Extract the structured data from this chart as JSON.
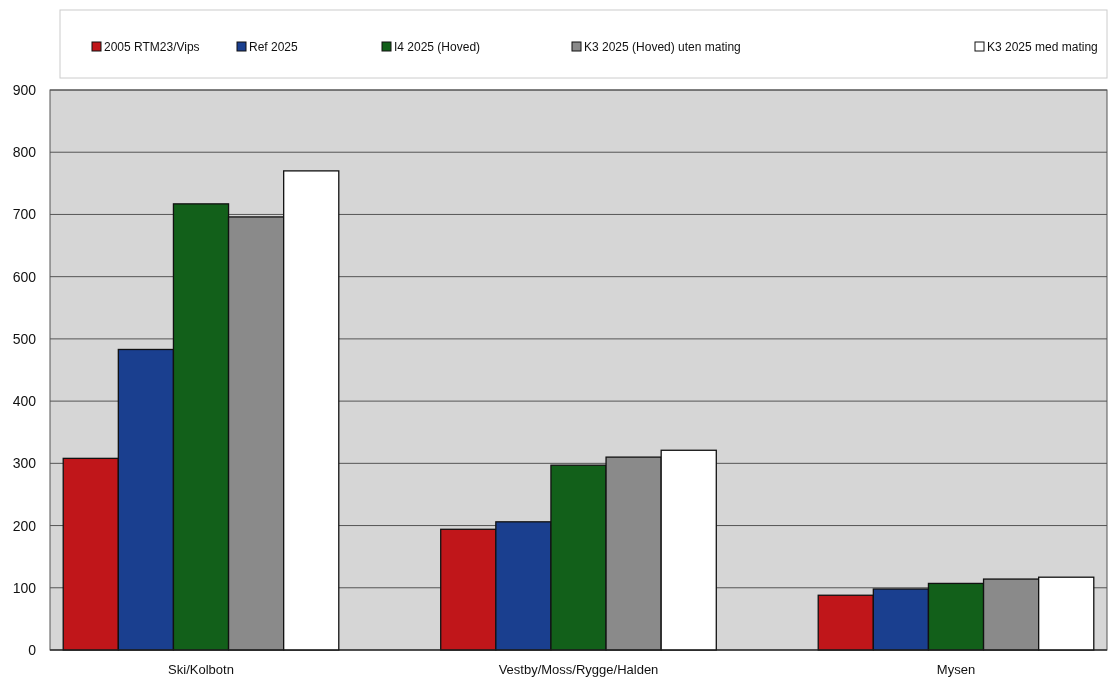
{
  "chart_data": {
    "type": "bar",
    "categories": [
      "Ski/Kolbotn",
      "Vestby/Moss/Rygge/Halden",
      "Mysen"
    ],
    "series": [
      {
        "name": "2005 RTM23/Vips",
        "color": "#c0161a",
        "values": [
          308,
          194,
          88
        ]
      },
      {
        "name": "Ref 2025",
        "color": "#1a3f8f",
        "values": [
          483,
          206,
          98
        ]
      },
      {
        "name": "I4 2025 (Hoved)",
        "color": "#12601a",
        "values": [
          717,
          297,
          107
        ]
      },
      {
        "name": "K3 2025 (Hoved) uten mating",
        "color": "#8a8a8a",
        "values": [
          696,
          310,
          114
        ]
      },
      {
        "name": "K3 2025 med mating",
        "color": "#ffffff",
        "values": [
          770,
          321,
          117
        ]
      }
    ],
    "ylim": [
      0,
      900
    ],
    "yticks": [
      0,
      100,
      200,
      300,
      400,
      500,
      600,
      700,
      800,
      900
    ],
    "grid": "y",
    "legend": "top"
  }
}
